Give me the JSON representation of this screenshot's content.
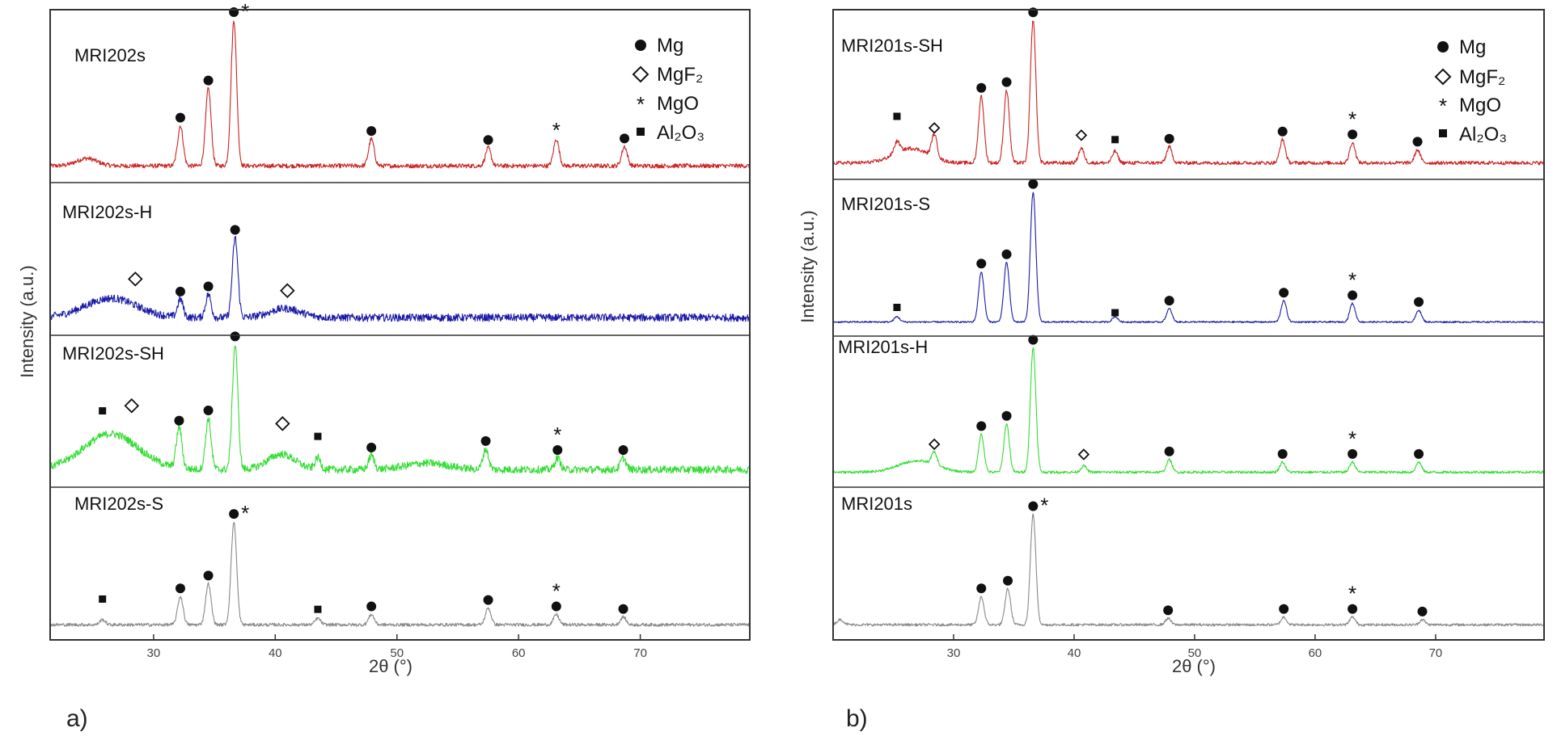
{
  "chart_data": [
    {
      "type": "line",
      "panel_tag": "a)",
      "xlabel": "2θ (°)",
      "ylabel": "Intensity (a.u.)",
      "xlim": [
        21.5,
        79
      ],
      "xticks": [
        30,
        40,
        50,
        60,
        70
      ],
      "xtick_labels": [
        "30",
        "40",
        "50",
        "60",
        "70"
      ],
      "grid": false,
      "legend": {
        "position": "top-right",
        "entries": [
          {
            "symbol": "circle",
            "label": "Mg"
          },
          {
            "symbol": "diamond",
            "label": "MgF₂"
          },
          {
            "symbol": "star",
            "label": "MgO"
          },
          {
            "symbol": "square",
            "label": "Al₂O₃"
          }
        ]
      },
      "series": [
        {
          "name": "MRI202s",
          "color": "#cc2222",
          "noise": 0.03,
          "baseline": 0.08,
          "bumps": [
            {
              "x": 24.5,
              "h": 0.05,
              "w": 1.2
            }
          ],
          "peaks": [
            {
              "x": 32.2,
              "h": 0.27,
              "phase": "Mg"
            },
            {
              "x": 34.5,
              "h": 0.52,
              "phase": "Mg"
            },
            {
              "x": 36.6,
              "h": 0.98,
              "phase": "Mg+MgO"
            },
            {
              "x": 47.9,
              "h": 0.18,
              "phase": "Mg"
            },
            {
              "x": 57.5,
              "h": 0.12,
              "phase": "Mg"
            },
            {
              "x": 63.1,
              "h": 0.18,
              "phase": "MgO"
            },
            {
              "x": 68.7,
              "h": 0.13,
              "phase": "Mg"
            }
          ]
        },
        {
          "name": "MRI202s-H",
          "color": "#1a1aa8",
          "noise": 0.06,
          "baseline": 0.1,
          "bumps": [
            {
              "x": 26.5,
              "h": 0.15,
              "w": 3.0
            },
            {
              "x": 40.8,
              "h": 0.07,
              "w": 1.8
            }
          ],
          "peaks": [
            {
              "x": 32.2,
              "h": 0.14,
              "phase": "Mg"
            },
            {
              "x": 34.5,
              "h": 0.18,
              "phase": "Mg"
            },
            {
              "x": 36.7,
              "h": 0.62,
              "phase": "Mg"
            }
          ],
          "diamonds": [
            {
              "x": 28.5,
              "h": 0.4
            },
            {
              "x": 41.0,
              "h": 0.31
            }
          ]
        },
        {
          "name": "MRI202s-SH",
          "color": "#33dd33",
          "noise": 0.06,
          "baseline": 0.1,
          "bumps": [
            {
              "x": 26.5,
              "h": 0.28,
              "w": 3.2
            },
            {
              "x": 40.5,
              "h": 0.12,
              "w": 1.6
            },
            {
              "x": 52.5,
              "h": 0.05,
              "w": 2.5
            }
          ],
          "peaks": [
            {
              "x": 32.1,
              "h": 0.32,
              "phase": "Mg"
            },
            {
              "x": 34.5,
              "h": 0.4,
              "phase": "Mg"
            },
            {
              "x": 36.7,
              "h": 0.98,
              "phase": "Mg"
            },
            {
              "x": 43.5,
              "h": 0.09,
              "phase": "Al2O3"
            },
            {
              "x": 47.9,
              "h": 0.11,
              "phase": "Mg"
            },
            {
              "x": 57.3,
              "h": 0.16,
              "phase": "Mg"
            },
            {
              "x": 63.2,
              "h": 0.09,
              "phase": "Mg+MgO"
            },
            {
              "x": 68.6,
              "h": 0.09,
              "phase": "Mg"
            }
          ],
          "diamonds": [
            {
              "x": 28.2,
              "h": 0.6
            },
            {
              "x": 40.6,
              "h": 0.46
            }
          ],
          "squares": [
            {
              "x": 25.8,
              "h": 0.56
            },
            {
              "x": 43.5,
              "h": 0.36
            }
          ]
        },
        {
          "name": "MRI202s-S",
          "color": "#888888",
          "noise": 0.025,
          "baseline": 0.08,
          "bumps": [],
          "peaks": [
            {
              "x": 25.8,
              "h": 0.04,
              "phase": "Al2O3"
            },
            {
              "x": 32.2,
              "h": 0.22,
              "phase": "Mg"
            },
            {
              "x": 34.5,
              "h": 0.32,
              "phase": "Mg"
            },
            {
              "x": 36.6,
              "h": 0.8,
              "phase": "Mg+MgO"
            },
            {
              "x": 43.5,
              "h": 0.05,
              "phase": "Al2O3"
            },
            {
              "x": 47.9,
              "h": 0.08,
              "phase": "Mg"
            },
            {
              "x": 57.5,
              "h": 0.13,
              "phase": "Mg"
            },
            {
              "x": 63.1,
              "h": 0.08,
              "phase": "Mg+MgO"
            },
            {
              "x": 68.6,
              "h": 0.06,
              "phase": "Mg"
            }
          ],
          "squares": [
            {
              "x": 25.8,
              "h": 0.28
            },
            {
              "x": 43.5,
              "h": 0.2
            }
          ]
        }
      ]
    },
    {
      "type": "line",
      "panel_tag": "b)",
      "xlabel": "2θ (°)",
      "ylabel": "Intensity (a.u.)",
      "xlim": [
        20,
        79
      ],
      "xticks": [
        30,
        40,
        50,
        60,
        70
      ],
      "xtick_labels": [
        "30",
        "40",
        "50",
        "60",
        "70"
      ],
      "grid": false,
      "legend": {
        "position": "top-right",
        "entries": [
          {
            "symbol": "circle",
            "label": "Mg"
          },
          {
            "symbol": "diamond",
            "label": "MgF₂"
          },
          {
            "symbol": "star",
            "label": "MgO"
          },
          {
            "symbol": "square",
            "label": "Al₂O₃"
          }
        ]
      },
      "series": [
        {
          "name": "MRI201s-SH",
          "color": "#cc2222",
          "noise": 0.025,
          "baseline": 0.08,
          "bumps": [
            {
              "x": 26.5,
              "h": 0.1,
              "w": 2.0
            }
          ],
          "peaks": [
            {
              "x": 25.3,
              "h": 0.08,
              "phase": "Al2O3"
            },
            {
              "x": 28.4,
              "h": 0.16,
              "phase": "MgF2"
            },
            {
              "x": 32.3,
              "h": 0.46,
              "phase": "Mg"
            },
            {
              "x": 34.4,
              "h": 0.5,
              "phase": "Mg"
            },
            {
              "x": 36.6,
              "h": 0.98,
              "phase": "Mg"
            },
            {
              "x": 40.6,
              "h": 0.1,
              "phase": "MgF2"
            },
            {
              "x": 43.4,
              "h": 0.08,
              "phase": "Al2O3"
            },
            {
              "x": 47.9,
              "h": 0.11,
              "phase": "Mg"
            },
            {
              "x": 57.3,
              "h": 0.16,
              "phase": "Mg"
            },
            {
              "x": 63.1,
              "h": 0.14,
              "phase": "Mg+MgO"
            },
            {
              "x": 68.5,
              "h": 0.09,
              "phase": "Mg"
            }
          ],
          "diamonds": [
            {
              "x": 28.4,
              "h": 0.32
            },
            {
              "x": 40.6,
              "h": 0.27
            }
          ],
          "squares": [
            {
              "x": 25.3,
              "h": 0.4
            },
            {
              "x": 43.4,
              "h": 0.24
            }
          ]
        },
        {
          "name": "MRI201s-S",
          "color": "#1a1aa8",
          "noise": 0.012,
          "baseline": 0.07,
          "bumps": [],
          "peaks": [
            {
              "x": 25.3,
              "h": 0.04,
              "phase": "Al2O3"
            },
            {
              "x": 32.3,
              "h": 0.38,
              "phase": "Mg"
            },
            {
              "x": 34.4,
              "h": 0.45,
              "phase": "Mg"
            },
            {
              "x": 36.6,
              "h": 0.98,
              "phase": "Mg"
            },
            {
              "x": 43.4,
              "h": 0.04,
              "phase": "Al2O3"
            },
            {
              "x": 47.9,
              "h": 0.1,
              "phase": "Mg"
            },
            {
              "x": 57.4,
              "h": 0.16,
              "phase": "Mg"
            },
            {
              "x": 63.1,
              "h": 0.14,
              "phase": "Mg+MgO"
            },
            {
              "x": 68.6,
              "h": 0.09,
              "phase": "Mg"
            }
          ],
          "squares": [
            {
              "x": 25.3,
              "h": 0.18
            },
            {
              "x": 43.4,
              "h": 0.14
            }
          ]
        },
        {
          "name": "MRI201s-H",
          "color": "#33dd33",
          "noise": 0.02,
          "baseline": 0.08,
          "bumps": [
            {
              "x": 27.0,
              "h": 0.09,
              "w": 2.2
            }
          ],
          "peaks": [
            {
              "x": 28.4,
              "h": 0.1,
              "phase": "MgF2"
            },
            {
              "x": 32.3,
              "h": 0.3,
              "phase": "Mg"
            },
            {
              "x": 34.4,
              "h": 0.38,
              "phase": "Mg"
            },
            {
              "x": 36.6,
              "h": 0.98,
              "phase": "Mg"
            },
            {
              "x": 40.8,
              "h": 0.05,
              "phase": "MgF2"
            },
            {
              "x": 47.9,
              "h": 0.1,
              "phase": "Mg"
            },
            {
              "x": 57.3,
              "h": 0.08,
              "phase": "Mg"
            },
            {
              "x": 63.1,
              "h": 0.08,
              "phase": "Mg+MgO"
            },
            {
              "x": 68.6,
              "h": 0.08,
              "phase": "Mg"
            }
          ],
          "diamonds": [
            {
              "x": 28.4,
              "h": 0.3
            },
            {
              "x": 40.8,
              "h": 0.22
            }
          ]
        },
        {
          "name": "MRI201s",
          "color": "#888888",
          "noise": 0.02,
          "baseline": 0.08,
          "bumps": [
            {
              "x": 20.6,
              "h": 0.04,
              "w": 0.4
            }
          ],
          "peaks": [
            {
              "x": 32.3,
              "h": 0.22,
              "phase": "Mg"
            },
            {
              "x": 34.5,
              "h": 0.28,
              "phase": "Mg"
            },
            {
              "x": 36.6,
              "h": 0.86,
              "phase": "Mg+MgO"
            },
            {
              "x": 47.8,
              "h": 0.05,
              "phase": "Mg"
            },
            {
              "x": 57.4,
              "h": 0.06,
              "phase": "Mg"
            },
            {
              "x": 63.1,
              "h": 0.06,
              "phase": "Mg+MgO"
            },
            {
              "x": 68.9,
              "h": 0.04,
              "phase": "Mg"
            }
          ]
        }
      ]
    }
  ]
}
